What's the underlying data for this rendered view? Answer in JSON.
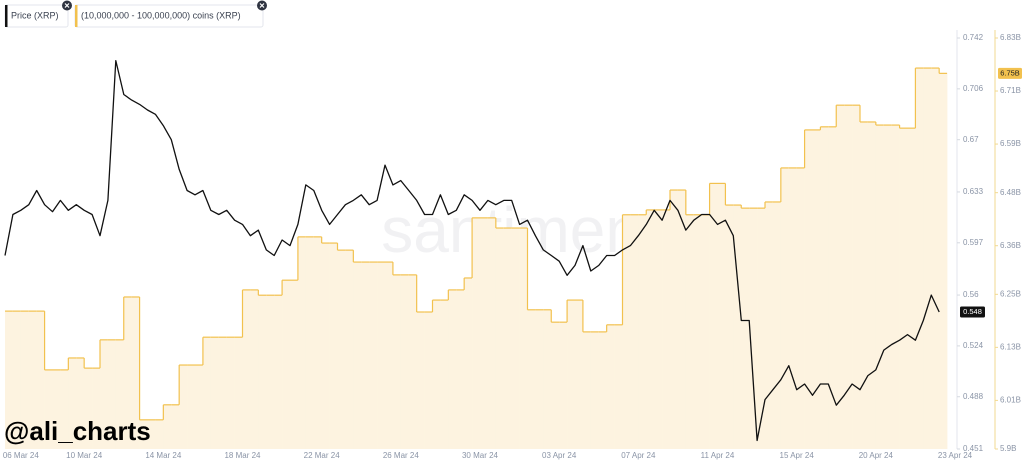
{
  "chart_data": {
    "type": "line",
    "legend": [
      "Price (XRP)",
      "(10,000,000 - 100,000,000) coins (XRP)"
    ],
    "watermark": "santiment",
    "credit": "@ali_charts",
    "categories": [
      null,
      null,
      "06 Mar 24",
      null,
      null,
      null,
      null,
      null,
      null,
      null,
      "10 Mar 24",
      null,
      null,
      null,
      null,
      null,
      null,
      null,
      null,
      null,
      "14 Mar 24",
      null,
      null,
      null,
      null,
      null,
      null,
      null,
      null,
      null,
      "18 Mar 24",
      null,
      null,
      null,
      null,
      null,
      null,
      null,
      null,
      null,
      "22 Mar 24",
      null,
      null,
      null,
      null,
      null,
      null,
      null,
      null,
      null,
      "26 Mar 24",
      null,
      null,
      null,
      null,
      null,
      null,
      null,
      null,
      null,
      "30 Mar 24",
      null,
      null,
      null,
      null,
      null,
      null,
      null,
      null,
      null,
      "03 Apr 24",
      null,
      null,
      null,
      null,
      null,
      null,
      null,
      null,
      null,
      "07 Apr 24",
      null,
      null,
      null,
      null,
      null,
      null,
      null,
      null,
      null,
      "11 Apr 24",
      null,
      null,
      null,
      null,
      null,
      null,
      null,
      null,
      null,
      "15 Apr 24",
      null,
      null,
      null,
      null,
      null,
      null,
      null,
      null,
      null,
      "20 Apr 24",
      null,
      null,
      null,
      null,
      null,
      null,
      null,
      null,
      null,
      "23 Apr 24"
    ],
    "series": [
      {
        "name": "Price (XRP)",
        "color": "#111111",
        "current_label": "0.548",
        "values": [
          0.588,
          0.617,
          0.62,
          0.624,
          0.634,
          0.624,
          0.619,
          0.627,
          0.62,
          0.624,
          0.62,
          0.617,
          0.602,
          0.627,
          0.726,
          0.702,
          0.698,
          0.695,
          0.691,
          0.688,
          0.68,
          0.67,
          0.649,
          0.634,
          0.631,
          0.634,
          0.62,
          0.617,
          0.62,
          0.613,
          0.61,
          0.602,
          0.606,
          0.592,
          0.588,
          0.599,
          0.595,
          0.61,
          0.638,
          0.634,
          0.62,
          0.61,
          0.617,
          0.624,
          0.627,
          0.631,
          0.624,
          0.627,
          0.652,
          0.638,
          0.641,
          0.634,
          0.627,
          0.617,
          0.617,
          0.631,
          0.617,
          0.62,
          0.631,
          0.627,
          0.62,
          0.627,
          0.624,
          0.627,
          0.627,
          0.61,
          0.613,
          0.602,
          0.592,
          0.588,
          0.584,
          0.574,
          0.581,
          0.595,
          0.577,
          0.581,
          0.588,
          0.588,
          0.592,
          0.595,
          0.602,
          0.61,
          0.62,
          0.613,
          0.627,
          0.62,
          0.606,
          0.613,
          0.617,
          0.617,
          0.61,
          0.613,
          0.602,
          0.542,
          0.542,
          0.457,
          0.486,
          0.493,
          0.5,
          0.51,
          0.493,
          0.497,
          0.489,
          0.497,
          0.497,
          0.482,
          0.489,
          0.497,
          0.493,
          0.503,
          0.507,
          0.521,
          0.525,
          0.528,
          0.532,
          0.528,
          0.542,
          0.56,
          0.548,
          null,
          null
        ]
      },
      {
        "name": "(10,000,000 - 100,000,000) coins (XRP)",
        "color": "#f2c14e",
        "fill": "#fdf3e0",
        "axis": "y2",
        "step": true,
        "current_label": "6.75B",
        "values": [
          6212000000,
          6212000000,
          6212000000,
          6212000000,
          6212000000,
          6079000000,
          6079000000,
          6079000000,
          6106000000,
          6106000000,
          6083000000,
          6083000000,
          6147000000,
          6147000000,
          6147000000,
          6244000000,
          6244000000,
          5966000000,
          5966000000,
          5966000000,
          6000000000,
          6000000000,
          6090000000,
          6090000000,
          6090000000,
          6153000000,
          6153000000,
          6153000000,
          6153000000,
          6153000000,
          6260000000,
          6260000000,
          6248000000,
          6248000000,
          6248000000,
          6282000000,
          6282000000,
          6380000000,
          6380000000,
          6380000000,
          6366000000,
          6366000000,
          6350000000,
          6350000000,
          6323000000,
          6323000000,
          6323000000,
          6323000000,
          6323000000,
          6294000000,
          6294000000,
          6294000000,
          6210000000,
          6210000000,
          6237000000,
          6237000000,
          6260000000,
          6260000000,
          6287000000,
          6423000000,
          6423000000,
          6423000000,
          6400000000,
          6400000000,
          6400000000,
          6400000000,
          6215000000,
          6215000000,
          6215000000,
          6187000000,
          6187000000,
          6237000000,
          6237000000,
          6165000000,
          6165000000,
          6165000000,
          6181000000,
          6181000000,
          6430000000,
          6430000000,
          6430000000,
          6441000000,
          6441000000,
          6441000000,
          6486000000,
          6486000000,
          6430000000,
          6430000000,
          6430000000,
          6501000000,
          6501000000,
          6452000000,
          6452000000,
          6445000000,
          6445000000,
          6445000000,
          6459000000,
          6459000000,
          6536000000,
          6536000000,
          6536000000,
          6622000000,
          6622000000,
          6629000000,
          6629000000,
          6678000000,
          6678000000,
          6678000000,
          6640000000,
          6640000000,
          6633000000,
          6633000000,
          6633000000,
          6626000000,
          6626000000,
          6762000000,
          6762000000,
          6762000000,
          6750000000,
          null,
          null
        ]
      }
    ],
    "ylim": [
      0.451,
      0.742
    ],
    "yticks": [
      0.451,
      0.488,
      0.524,
      0.56,
      0.597,
      0.633,
      0.67,
      0.706,
      0.742
    ],
    "y2lim": [
      5900000000,
      6830000000
    ],
    "y2ticks": [
      {
        "value": 5900000000,
        "label": "5.9B"
      },
      {
        "value": 6010000000,
        "label": "6.01B"
      },
      {
        "value": 6130000000,
        "label": "6.13B"
      },
      {
        "value": 6250000000,
        "label": "6.25B"
      },
      {
        "value": 6360000000,
        "label": "6.36B"
      },
      {
        "value": 6480000000,
        "label": "6.48B"
      },
      {
        "value": 6590000000,
        "label": "6.59B"
      },
      {
        "value": 6710000000,
        "label": "6.71B"
      },
      {
        "value": 6830000000,
        "label": "6.83B"
      }
    ],
    "grid": false
  }
}
